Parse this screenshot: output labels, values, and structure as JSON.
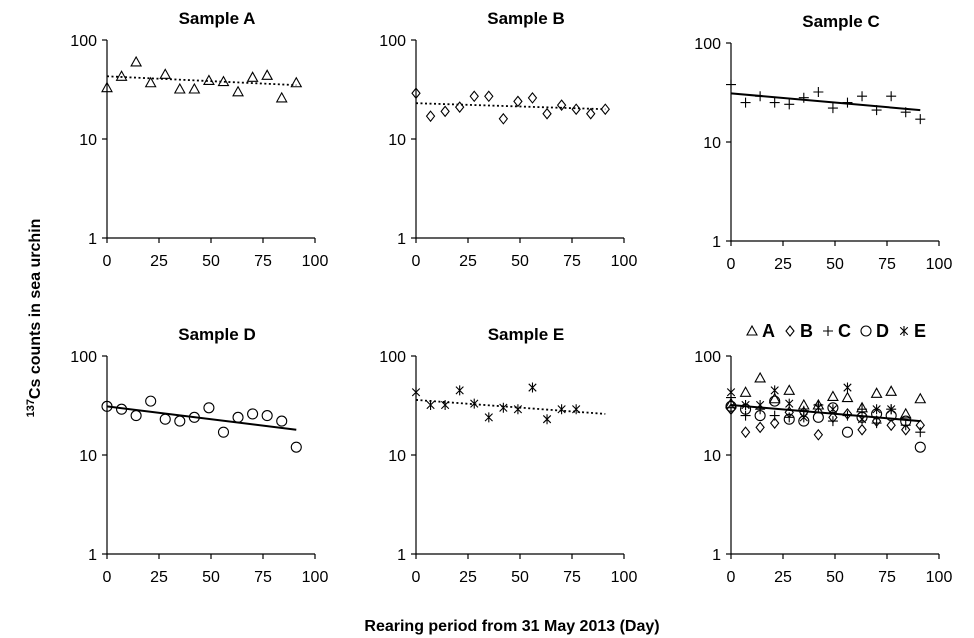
{
  "figure": {
    "ylabel_sup": "137",
    "ylabel_main": "Cs counts in sea urchin",
    "xlabel": "Rearing period from 31 May 2013 (Day)"
  },
  "chart_data": [
    {
      "type": "scatter",
      "title": "Sample A",
      "marker": "triangle",
      "yscale": "log",
      "xlim": [
        0,
        100
      ],
      "ylim": [
        1,
        100
      ],
      "xticks": [
        "0",
        "25",
        "50",
        "75",
        "100"
      ],
      "yticks": [
        "1",
        "10",
        "100"
      ],
      "x": [
        0,
        7,
        14,
        21,
        28,
        35,
        42,
        49,
        56,
        63,
        70,
        77,
        84,
        91
      ],
      "y": [
        33,
        43,
        60,
        37,
        45,
        32,
        32,
        39,
        38,
        30,
        42,
        44,
        26,
        37
      ],
      "trend": {
        "style": "dotted",
        "x": [
          0,
          91
        ],
        "y": [
          43,
          35
        ]
      }
    },
    {
      "type": "scatter",
      "title": "Sample B",
      "marker": "diamond",
      "yscale": "log",
      "xlim": [
        0,
        100
      ],
      "ylim": [
        1,
        100
      ],
      "xticks": [
        "0",
        "25",
        "50",
        "75",
        "100"
      ],
      "yticks": [
        "1",
        "10",
        "100"
      ],
      "x": [
        0,
        7,
        14,
        21,
        28,
        35,
        42,
        49,
        56,
        63,
        70,
        77,
        84,
        91
      ],
      "y": [
        29,
        17,
        19,
        21,
        27,
        27,
        16,
        24,
        26,
        18,
        22,
        20,
        18,
        20
      ],
      "trend": {
        "style": "dotted",
        "x": [
          0,
          91
        ],
        "y": [
          23,
          20
        ]
      }
    },
    {
      "type": "scatter",
      "title": "Sample C",
      "marker": "plus",
      "yscale": "log",
      "xlim": [
        0,
        100
      ],
      "ylim": [
        1,
        100
      ],
      "xticks": [
        "0",
        "25",
        "50",
        "75",
        "100"
      ],
      "yticks": [
        "1",
        "10",
        "100"
      ],
      "x": [
        0,
        7,
        14,
        21,
        28,
        35,
        42,
        49,
        56,
        63,
        70,
        77,
        84,
        91
      ],
      "y": [
        38,
        25,
        29,
        25,
        24,
        28,
        32,
        22,
        25,
        29,
        21,
        29,
        20,
        17
      ],
      "trend": {
        "style": "solid",
        "x": [
          0,
          91
        ],
        "y": [
          31,
          21
        ]
      }
    },
    {
      "type": "scatter",
      "title": "Sample D",
      "marker": "circle",
      "yscale": "log",
      "xlim": [
        0,
        100
      ],
      "ylim": [
        1,
        100
      ],
      "xticks": [
        "0",
        "25",
        "50",
        "75",
        "100"
      ],
      "yticks": [
        "1",
        "10",
        "100"
      ],
      "x": [
        0,
        7,
        14,
        21,
        28,
        35,
        42,
        49,
        56,
        63,
        70,
        77,
        84,
        91
      ],
      "y": [
        31,
        29,
        25,
        35,
        23,
        22,
        24,
        30,
        17,
        24,
        26,
        25,
        22,
        12
      ],
      "trend": {
        "style": "solid",
        "x": [
          0,
          91
        ],
        "y": [
          31,
          18
        ]
      }
    },
    {
      "type": "scatter",
      "title": "Sample E",
      "marker": "asterisk",
      "yscale": "log",
      "xlim": [
        0,
        100
      ],
      "ylim": [
        1,
        100
      ],
      "xticks": [
        "0",
        "25",
        "50",
        "75",
        "100"
      ],
      "yticks": [
        "1",
        "10",
        "100"
      ],
      "x": [
        0,
        7,
        14,
        21,
        28,
        35,
        42,
        49,
        56,
        63,
        70,
        77
      ],
      "y": [
        43,
        32,
        32,
        45,
        33,
        24,
        30,
        29,
        48,
        23,
        29,
        29
      ],
      "trend": {
        "style": "dotted",
        "x": [
          0,
          91
        ],
        "y": [
          36,
          26
        ]
      }
    },
    {
      "type": "scatter",
      "title": "",
      "combined": true,
      "yscale": "log",
      "xlim": [
        0,
        100
      ],
      "ylim": [
        1,
        100
      ],
      "xticks": [
        "0",
        "25",
        "50",
        "75",
        "100"
      ],
      "yticks": [
        "1",
        "10",
        "100"
      ],
      "legend_position": "top",
      "legend": [
        {
          "marker": "triangle",
          "label": "A"
        },
        {
          "marker": "diamond",
          "label": "B"
        },
        {
          "marker": "plus",
          "label": "C"
        },
        {
          "marker": "circle",
          "label": "D"
        },
        {
          "marker": "asterisk",
          "label": "E"
        }
      ],
      "series_from": [
        0,
        1,
        2,
        3,
        4
      ],
      "trend": {
        "style": "solid",
        "x": [
          0,
          91
        ],
        "y": [
          32,
          22
        ]
      }
    }
  ]
}
